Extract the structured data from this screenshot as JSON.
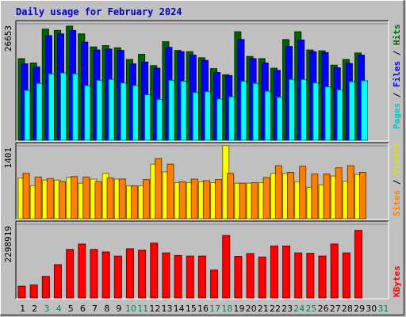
{
  "chart_data": [
    {
      "type": "bar",
      "title": "Daily usage for February 2024",
      "panel": "hits-files-pages",
      "ymax_label": "26653",
      "ymax": 26653,
      "categories": [
        "1",
        "2",
        "3",
        "4",
        "5",
        "6",
        "7",
        "8",
        "9",
        "10",
        "11",
        "12",
        "13",
        "14",
        "15",
        "16",
        "17",
        "18",
        "19",
        "20",
        "21",
        "22",
        "23",
        "24",
        "25",
        "26",
        "27",
        "28",
        "29",
        "30",
        "31"
      ],
      "weekend_days": [
        "3",
        "4",
        "10",
        "11",
        "17",
        "18",
        "24",
        "25",
        "31"
      ],
      "series": [
        {
          "name": "Hits",
          "color": "#006400",
          "values": [
            18800,
            17800,
            25600,
            25300,
            26300,
            24500,
            21500,
            21800,
            21300,
            18600,
            19800,
            17200,
            22700,
            20700,
            20400,
            19000,
            16500,
            15100,
            25000,
            19300,
            18800,
            16600,
            23200,
            25000,
            20800,
            20600,
            17300,
            18600,
            20100,
            0,
            0
          ]
        },
        {
          "name": "Files",
          "color": "#0000ff",
          "values": [
            17600,
            16900,
            24100,
            24500,
            25300,
            22600,
            20800,
            21000,
            20700,
            17600,
            18000,
            16600,
            21400,
            20400,
            19600,
            18400,
            15600,
            14900,
            23200,
            18800,
            17800,
            16100,
            21600,
            23100,
            20400,
            20200,
            16700,
            17700,
            19600,
            0,
            0
          ]
        },
        {
          "name": "Pages",
          "color": "#00ffff",
          "values": [
            11500,
            13100,
            15300,
            15500,
            15300,
            12600,
            13800,
            14000,
            13200,
            12600,
            10500,
            9400,
            13800,
            13600,
            11000,
            11200,
            9500,
            10000,
            13600,
            13100,
            11300,
            9900,
            14000,
            14000,
            13200,
            12300,
            11600,
            13500,
            13700,
            0,
            0
          ]
        }
      ]
    },
    {
      "type": "bar",
      "panel": "visits-sites",
      "ymax_label": "1401",
      "ymax": 1401,
      "categories": [
        "1",
        "2",
        "3",
        "4",
        "5",
        "6",
        "7",
        "8",
        "9",
        "10",
        "11",
        "12",
        "13",
        "14",
        "15",
        "16",
        "17",
        "18",
        "19",
        "20",
        "21",
        "22",
        "23",
        "24",
        "25",
        "26",
        "27",
        "28",
        "29",
        "30",
        "31"
      ],
      "series": [
        {
          "name": "Visits",
          "color": "#ffff00",
          "values": [
            790,
            640,
            750,
            750,
            800,
            690,
            770,
            880,
            770,
            640,
            640,
            1060,
            910,
            700,
            700,
            720,
            700,
            1420,
            690,
            690,
            700,
            880,
            880,
            720,
            610,
            660,
            830,
            730,
            860,
            0,
            0
          ]
        },
        {
          "name": "Sites",
          "color": "#ff8000",
          "values": [
            880,
            810,
            780,
            720,
            820,
            810,
            720,
            790,
            770,
            640,
            760,
            1170,
            1060,
            720,
            770,
            740,
            760,
            880,
            690,
            700,
            800,
            1030,
            900,
            1020,
            870,
            870,
            990,
            1030,
            900,
            0,
            0
          ]
        }
      ]
    },
    {
      "type": "bar",
      "panel": "kbytes",
      "ymax_label": "2298919",
      "ymax": 2298919,
      "categories": [
        "1",
        "2",
        "3",
        "4",
        "5",
        "6",
        "7",
        "8",
        "9",
        "10",
        "11",
        "12",
        "13",
        "14",
        "15",
        "16",
        "17",
        "18",
        "19",
        "20",
        "21",
        "22",
        "23",
        "24",
        "25",
        "26",
        "27",
        "28",
        "29",
        "30",
        "31"
      ],
      "series": [
        {
          "name": "KBytes",
          "color": "#ff0000",
          "values": [
            370000,
            410000,
            680000,
            1050000,
            1530000,
            1700000,
            1530000,
            1450000,
            1320000,
            1550000,
            1510000,
            1730000,
            1420000,
            1340000,
            1320000,
            1320000,
            880000,
            1970000,
            1310000,
            1400000,
            1290000,
            1640000,
            1640000,
            1420000,
            1410000,
            1320000,
            1700000,
            1420000,
            2130000,
            0,
            0
          ]
        }
      ]
    }
  ],
  "legend": {
    "hits": "Hits",
    "files": "Files",
    "pages": "Pages",
    "visits": "Visits",
    "sites": "Sites",
    "kbytes": "KBytes",
    "slash": "/"
  },
  "colors": {
    "background": "#c0c0c0",
    "title": "#0000c8",
    "weekday_label": "#000000",
    "weekend_label": "#00805a"
  }
}
